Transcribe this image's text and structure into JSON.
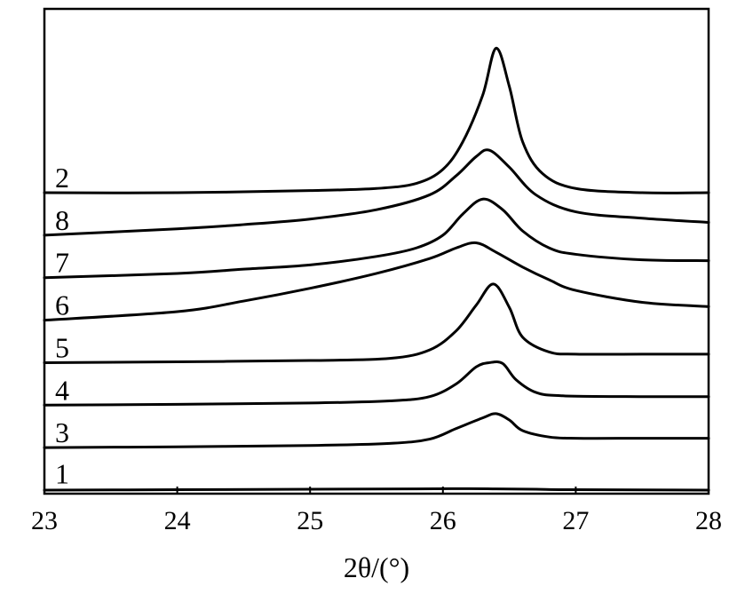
{
  "chart_data": {
    "type": "line",
    "xlabel": "2θ/(°)",
    "ylabel": "",
    "title": "",
    "xlim": [
      23,
      28
    ],
    "x_ticks": [
      "23",
      "24",
      "25",
      "26",
      "27",
      "28"
    ],
    "y_axis_shown": false,
    "grid": false,
    "legend": "none",
    "curve_colors": "#000000",
    "series": [
      {
        "name": "1",
        "baseline": 0.03,
        "points": [
          [
            23,
            0.0
          ],
          [
            24,
            0.01
          ],
          [
            25,
            0.02
          ],
          [
            25.8,
            0.03
          ],
          [
            26.2,
            0.035
          ],
          [
            26.4,
            0.03
          ],
          [
            26.7,
            0.02
          ],
          [
            27,
            0.01
          ],
          [
            28,
            0.0
          ]
        ]
      },
      {
        "name": "3",
        "baseline": 1.0,
        "points": [
          [
            23,
            1.0
          ],
          [
            24,
            1.02
          ],
          [
            25,
            1.05
          ],
          [
            25.6,
            1.1
          ],
          [
            25.9,
            1.2
          ],
          [
            26.1,
            1.45
          ],
          [
            26.3,
            1.7
          ],
          [
            26.4,
            1.8
          ],
          [
            26.5,
            1.65
          ],
          [
            26.6,
            1.4
          ],
          [
            26.8,
            1.25
          ],
          [
            27,
            1.22
          ],
          [
            27.5,
            1.22
          ],
          [
            28,
            1.22
          ]
        ]
      },
      {
        "name": "4",
        "baseline": 2.0,
        "points": [
          [
            23,
            2.0
          ],
          [
            24,
            2.02
          ],
          [
            25,
            2.05
          ],
          [
            25.6,
            2.1
          ],
          [
            25.9,
            2.2
          ],
          [
            26.1,
            2.5
          ],
          [
            26.25,
            2.9
          ],
          [
            26.35,
            3.0
          ],
          [
            26.45,
            2.98
          ],
          [
            26.55,
            2.6
          ],
          [
            26.7,
            2.3
          ],
          [
            26.9,
            2.22
          ],
          [
            27.5,
            2.2
          ],
          [
            28,
            2.2
          ]
        ]
      },
      {
        "name": "5",
        "baseline": 3.0,
        "points": [
          [
            23,
            3.0
          ],
          [
            24,
            3.02
          ],
          [
            25,
            3.05
          ],
          [
            25.6,
            3.1
          ],
          [
            25.9,
            3.3
          ],
          [
            26.1,
            3.75
          ],
          [
            26.25,
            4.35
          ],
          [
            26.38,
            4.85
          ],
          [
            26.5,
            4.3
          ],
          [
            26.6,
            3.6
          ],
          [
            26.8,
            3.25
          ],
          [
            27,
            3.2
          ],
          [
            27.5,
            3.2
          ],
          [
            28,
            3.2
          ]
        ]
      },
      {
        "name": "6",
        "baseline": 4.0,
        "points": [
          [
            23,
            4.0
          ],
          [
            24,
            4.2
          ],
          [
            24.5,
            4.45
          ],
          [
            25,
            4.75
          ],
          [
            25.5,
            5.1
          ],
          [
            25.9,
            5.45
          ],
          [
            26.1,
            5.7
          ],
          [
            26.25,
            5.82
          ],
          [
            26.4,
            5.6
          ],
          [
            26.6,
            5.25
          ],
          [
            26.8,
            4.95
          ],
          [
            27,
            4.7
          ],
          [
            27.5,
            4.42
          ],
          [
            28,
            4.32
          ]
        ]
      },
      {
        "name": "7",
        "baseline": 5.0,
        "points": [
          [
            23,
            5.0
          ],
          [
            24,
            5.1
          ],
          [
            24.5,
            5.2
          ],
          [
            25,
            5.3
          ],
          [
            25.5,
            5.5
          ],
          [
            25.8,
            5.7
          ],
          [
            26,
            6.0
          ],
          [
            26.15,
            6.5
          ],
          [
            26.3,
            6.85
          ],
          [
            26.45,
            6.6
          ],
          [
            26.6,
            6.1
          ],
          [
            26.8,
            5.7
          ],
          [
            27,
            5.55
          ],
          [
            27.5,
            5.42
          ],
          [
            28,
            5.4
          ]
        ]
      },
      {
        "name": "8",
        "baseline": 6.0,
        "points": [
          [
            23,
            6.0
          ],
          [
            24,
            6.15
          ],
          [
            24.5,
            6.25
          ],
          [
            25,
            6.38
          ],
          [
            25.5,
            6.6
          ],
          [
            25.9,
            6.95
          ],
          [
            26.1,
            7.4
          ],
          [
            26.25,
            7.85
          ],
          [
            26.35,
            8.0
          ],
          [
            26.5,
            7.6
          ],
          [
            26.7,
            6.95
          ],
          [
            27,
            6.55
          ],
          [
            27.5,
            6.4
          ],
          [
            28,
            6.3
          ]
        ]
      },
      {
        "name": "2",
        "baseline": 7.0,
        "points": [
          [
            23,
            7.0
          ],
          [
            24,
            7.0
          ],
          [
            25,
            7.05
          ],
          [
            25.5,
            7.1
          ],
          [
            25.8,
            7.22
          ],
          [
            26,
            7.55
          ],
          [
            26.15,
            8.2
          ],
          [
            26.3,
            9.3
          ],
          [
            26.4,
            10.4
          ],
          [
            26.5,
            9.5
          ],
          [
            26.6,
            8.2
          ],
          [
            26.75,
            7.45
          ],
          [
            27,
            7.1
          ],
          [
            27.5,
            7.0
          ],
          [
            28,
            7.0
          ]
        ]
      }
    ],
    "ylim": [
      0,
      10.7
    ]
  }
}
